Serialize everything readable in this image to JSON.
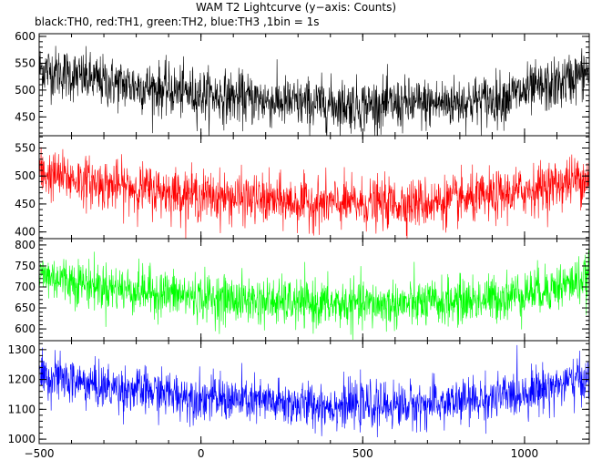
{
  "chart_data": {
    "type": "line",
    "title": "WAM T2 Lightcurve (y−axis: Counts)",
    "subtitle": "black:TH0, red:TH1, green:TH2, blue:TH3 ,1bin = 1s",
    "xlim": [
      -500,
      1200
    ],
    "x_ticks": [
      -500,
      0,
      500,
      1000
    ],
    "x_tick_labels": [
      "−500",
      "0",
      "500",
      "1000"
    ],
    "bin_seconds": 1,
    "grid": false,
    "legend": "text in subtitle",
    "panels": [
      {
        "series": "TH0",
        "color": "#000000",
        "ylim": [
          415,
          605
        ],
        "y_ticks": [
          450,
          500,
          550,
          600
        ],
        "y_tick_labels": [
          "450",
          "500",
          "550",
          "600"
        ],
        "trend_x": [
          -500,
          -300,
          0,
          300,
          500,
          700,
          900,
          1100,
          1200
        ],
        "trend_y": [
          540,
          515,
          492,
          475,
          472,
          474,
          482,
          510,
          535
        ],
        "noise_sd": 24
      },
      {
        "series": "TH1",
        "color": "#ff0000",
        "ylim": [
          388,
          572
        ],
        "y_ticks": [
          400,
          450,
          500,
          550
        ],
        "y_tick_labels": [
          "400",
          "450",
          "500",
          "550"
        ],
        "trend_x": [
          -500,
          -300,
          0,
          300,
          500,
          700,
          900,
          1100,
          1200
        ],
        "trend_y": [
          505,
          485,
          465,
          452,
          450,
          452,
          462,
          485,
          500
        ],
        "noise_sd": 22
      },
      {
        "series": "TH2",
        "color": "#00ff00",
        "ylim": [
          572,
          815
        ],
        "y_ticks": [
          600,
          650,
          700,
          750,
          800
        ],
        "y_tick_labels": [
          "600",
          "650",
          "700",
          "750",
          "800"
        ],
        "trend_x": [
          -500,
          -300,
          0,
          300,
          500,
          700,
          900,
          1100,
          1200
        ],
        "trend_y": [
          730,
          700,
          675,
          660,
          657,
          660,
          672,
          700,
          720
        ],
        "noise_sd": 28
      },
      {
        "series": "TH3",
        "color": "#0000ff",
        "ylim": [
          985,
          1330
        ],
        "y_ticks": [
          1000,
          1100,
          1200,
          1300
        ],
        "y_tick_labels": [
          "1000",
          "1100",
          "1200",
          "1300"
        ],
        "trend_x": [
          -500,
          -300,
          0,
          300,
          500,
          700,
          900,
          1100,
          1200
        ],
        "trend_y": [
          1215,
          1175,
          1140,
          1115,
          1112,
          1115,
          1135,
          1180,
          1205
        ],
        "noise_sd": 38
      }
    ]
  }
}
